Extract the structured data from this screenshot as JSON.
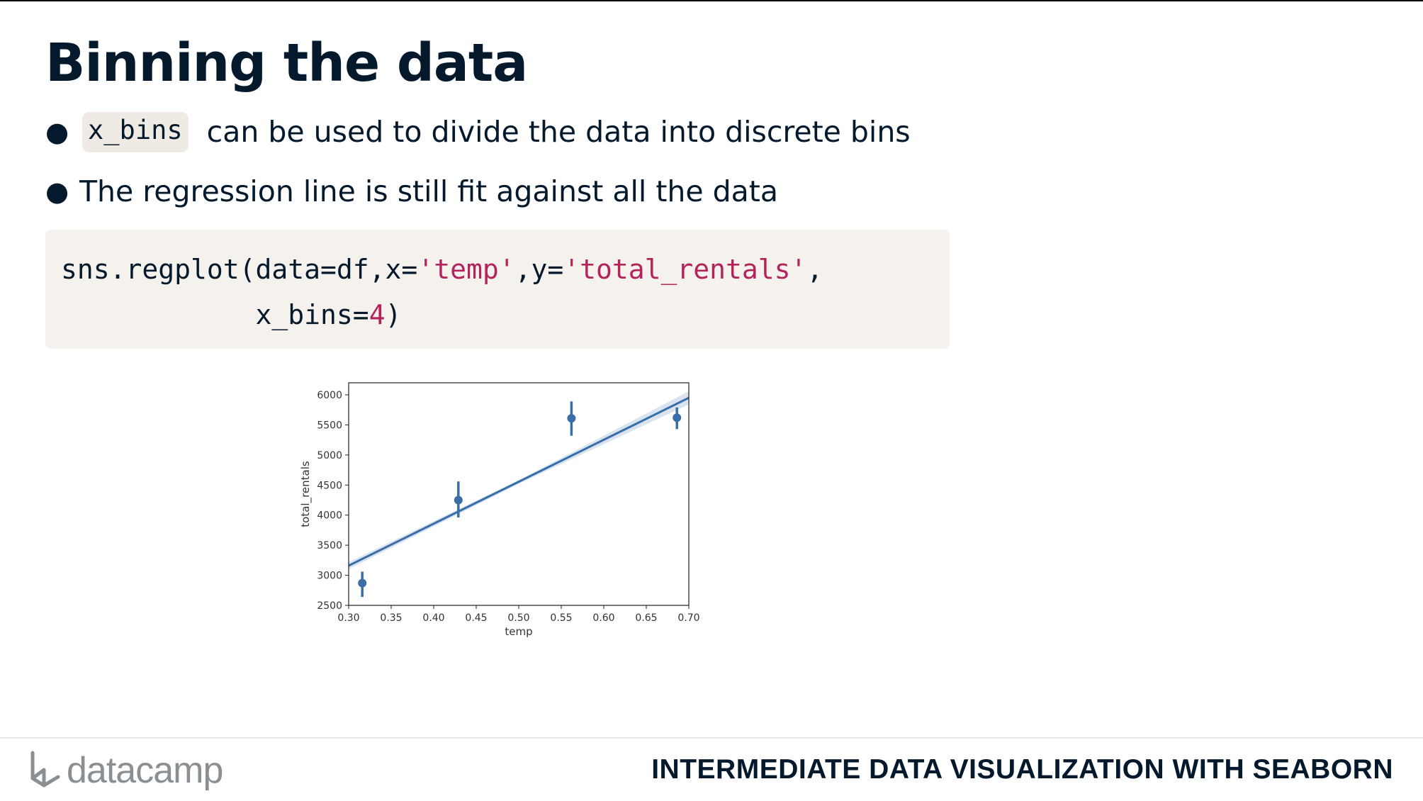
{
  "slide": {
    "title": "Binning the data",
    "bullets": [
      {
        "code": "x_bins",
        "text": "can be used to divide the data into discrete bins"
      },
      {
        "text": "The regression line is still fit against all the data"
      }
    ],
    "code": {
      "line1_prefix": "sns.regplot(data=df,x=",
      "line1_str1": "'temp'",
      "line1_mid": ",y=",
      "line1_str2": "'total_rentals'",
      "line1_suffix": ",",
      "line2_indent": "            x_bins=",
      "line2_num": "4",
      "line2_suffix": ")"
    }
  },
  "footer": {
    "logo_text": "datacamp",
    "course_title": "INTERMEDIATE DATA VISUALIZATION WITH SEABORN"
  },
  "colors": {
    "series": "#3a6ea8",
    "band": "#c9d8ea",
    "code_string": "#b3245c"
  },
  "chart_data": {
    "type": "scatter",
    "xlabel": "temp",
    "ylabel": "total_rentals",
    "xlim": [
      0.3,
      0.7
    ],
    "ylim": [
      2500,
      6200
    ],
    "xticks": [
      "0.30",
      "0.35",
      "0.40",
      "0.45",
      "0.50",
      "0.55",
      "0.60",
      "0.65",
      "0.70"
    ],
    "yticks": [
      "2500",
      "3000",
      "3500",
      "4000",
      "4500",
      "5000",
      "5500",
      "6000"
    ],
    "points": [
      {
        "x": 0.316,
        "y": 2870,
        "err_low": 2640,
        "err_high": 3060
      },
      {
        "x": 0.429,
        "y": 4250,
        "err_low": 3960,
        "err_high": 4560
      },
      {
        "x": 0.562,
        "y": 5610,
        "err_low": 5320,
        "err_high": 5890
      },
      {
        "x": 0.686,
        "y": 5620,
        "err_low": 5430,
        "err_high": 5790
      }
    ],
    "regression_line": {
      "x": [
        0.3,
        0.7
      ],
      "y": [
        3160,
        5950
      ]
    },
    "confidence_band": {
      "x": [
        0.3,
        0.5,
        0.7
      ],
      "upper": [
        3220,
        4580,
        6060
      ],
      "lower": [
        3100,
        4520,
        5840
      ]
    },
    "grid": false
  }
}
